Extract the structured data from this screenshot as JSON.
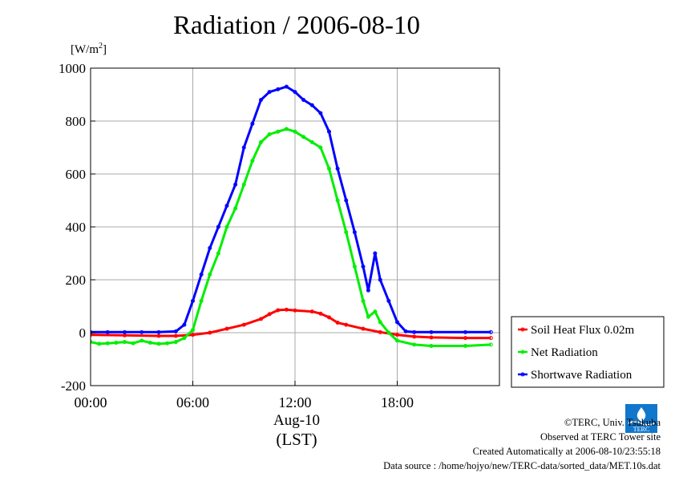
{
  "chart_data": {
    "type": "line",
    "title": "Radiation / 2006-08-10",
    "ylabel_unit": "[W/m2]",
    "unit_text": "[W/m",
    "unit_sup": "2",
    "unit_close": "]",
    "xlabel_line1": "Aug-10",
    "xlabel_line2": "(LST)",
    "ylim": [
      -200,
      1000
    ],
    "xlim": [
      0,
      24
    ],
    "yticks": [
      -200,
      0,
      200,
      400,
      600,
      800,
      1000
    ],
    "ytick_labels": [
      "-200",
      "0",
      "200",
      "400",
      "600",
      "800",
      "1000"
    ],
    "xticks": [
      0,
      6,
      12,
      18
    ],
    "xtick_labels": [
      "00:00",
      "06:00",
      "12:00",
      "18:00"
    ],
    "grid": true,
    "legend_position": "right",
    "series": [
      {
        "name": "Soil Heat Flux 0.02m",
        "color": "#ff0000",
        "x": [
          0,
          2,
          4,
          5,
          6,
          7,
          8,
          9,
          10,
          10.5,
          11,
          11.5,
          12,
          13,
          13.5,
          14,
          14.5,
          15,
          16,
          17,
          18,
          19,
          20,
          22,
          23.5
        ],
        "y": [
          -8,
          -10,
          -12,
          -12,
          -8,
          0,
          15,
          30,
          52,
          70,
          85,
          87,
          84,
          80,
          72,
          58,
          38,
          30,
          15,
          2,
          -8,
          -15,
          -18,
          -20,
          -20
        ]
      },
      {
        "name": "Net Radiation",
        "color": "#00ee00",
        "x": [
          0,
          0.5,
          1,
          1.5,
          2,
          2.5,
          3,
          3.5,
          4,
          4.5,
          5,
          5.5,
          6,
          6.5,
          7,
          7.5,
          8,
          8.5,
          9,
          9.5,
          10,
          10.5,
          11,
          11.5,
          12,
          12.5,
          13,
          13.5,
          14,
          14.5,
          15,
          15.5,
          16,
          16.3,
          16.7,
          17,
          17.5,
          18,
          19,
          20,
          22,
          23.5
        ],
        "y": [
          -35,
          -42,
          -40,
          -38,
          -35,
          -40,
          -30,
          -38,
          -42,
          -40,
          -35,
          -20,
          10,
          120,
          220,
          300,
          400,
          470,
          560,
          650,
          720,
          750,
          760,
          770,
          760,
          740,
          720,
          700,
          620,
          500,
          380,
          250,
          120,
          60,
          80,
          40,
          0,
          -30,
          -45,
          -50,
          -50,
          -45
        ]
      },
      {
        "name": "Shortwave Radiation",
        "color": "#0000ff",
        "x": [
          0,
          1,
          2,
          3,
          4,
          5,
          5.5,
          6,
          6.5,
          7,
          7.5,
          8,
          8.5,
          9,
          9.5,
          10,
          10.5,
          11,
          11.5,
          12,
          12.5,
          13,
          13.5,
          14,
          14.5,
          15,
          15.5,
          16,
          16.3,
          16.7,
          17,
          17.5,
          18,
          18.5,
          19,
          20,
          22,
          23.5
        ],
        "y": [
          2,
          2,
          2,
          2,
          2,
          5,
          30,
          120,
          220,
          320,
          400,
          480,
          560,
          700,
          790,
          880,
          910,
          920,
          930,
          910,
          880,
          860,
          830,
          760,
          620,
          500,
          380,
          250,
          160,
          300,
          200,
          120,
          40,
          5,
          2,
          2,
          2,
          2
        ]
      }
    ]
  },
  "credits": {
    "line1": "©TERC, Univ. Tsukuba",
    "line2": "Observed at TERC Tower site",
    "line3": "Created Automatically at 2006-08-10/23:55:18",
    "line4": "Data source : /home/hojyo/new/TERC-data/sorted_data/MET.10s.dat"
  },
  "logo": {
    "text": "TERC",
    "color": "#1177cc"
  }
}
